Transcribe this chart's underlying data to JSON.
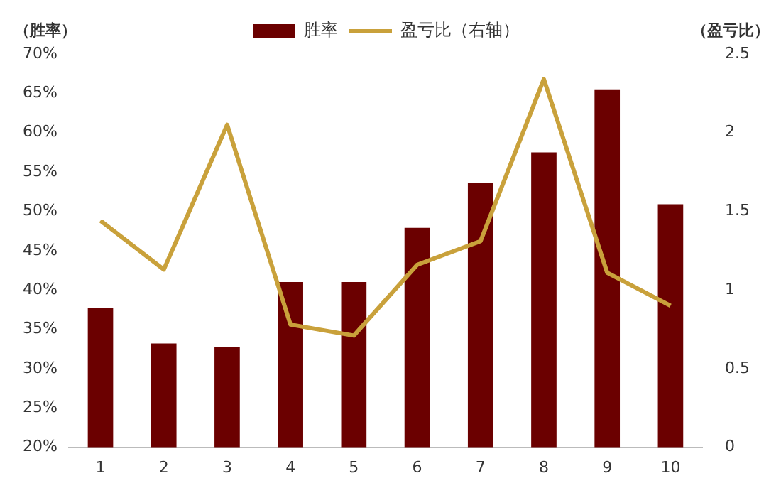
{
  "chart_data": {
    "type": "bar",
    "categories": [
      "1",
      "2",
      "3",
      "4",
      "5",
      "6",
      "7",
      "8",
      "9",
      "10"
    ],
    "ylabel": "（胜率）",
    "y2label": "（盈亏比）",
    "series": [
      {
        "name": "胜率",
        "color": "#6b0000",
        "values": [
          37.7,
          33.2,
          32.8,
          41,
          41,
          47.9,
          53.6,
          57.5,
          65.5,
          50.9
        ]
      },
      {
        "name": "盈亏比（右轴）",
        "type": "line",
        "axis": "y2",
        "color": "#c9a13b",
        "values": [
          1.44,
          1.13,
          2.05,
          0.78,
          0.71,
          1.16,
          1.31,
          2.34,
          1.11,
          0.9
        ]
      }
    ],
    "ylim": [
      20,
      70
    ],
    "yticks": [
      {
        "value": 20,
        "label": "20%"
      },
      {
        "value": 25,
        "label": "25%"
      },
      {
        "value": 30,
        "label": "30%"
      },
      {
        "value": 35,
        "label": "35%"
      },
      {
        "value": 40,
        "label": "40%"
      },
      {
        "value": 45,
        "label": "45%"
      },
      {
        "value": 50,
        "label": "50%"
      },
      {
        "value": 55,
        "label": "55%"
      },
      {
        "value": 60,
        "label": "60%"
      },
      {
        "value": 65,
        "label": "65%"
      },
      {
        "value": 70,
        "label": "70%"
      }
    ],
    "y2lim": [
      0,
      2.5
    ],
    "y2ticks": [
      0,
      0.5,
      1,
      1.5,
      2,
      2.5
    ],
    "legend": "top",
    "grid": false,
    "marker": "none",
    "line_style": "solid"
  }
}
